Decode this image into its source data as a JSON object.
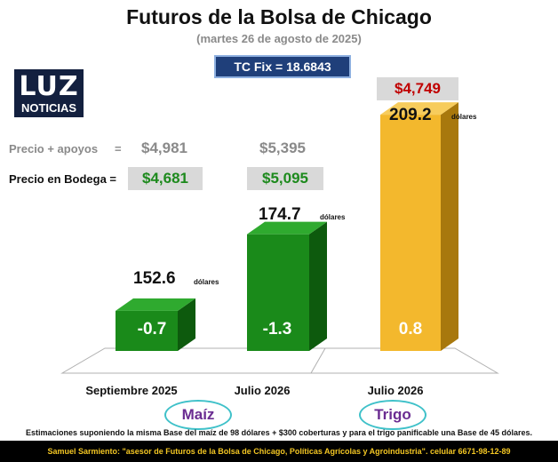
{
  "header": {
    "title": "Futuros de la Bolsa de Chicago",
    "subtitle": "(martes 26 de agosto de 2025)",
    "fx": "TC Fix = 18.6843"
  },
  "logo": {
    "main": "LUZ",
    "sub": "NOTICIAS"
  },
  "prices": {
    "apoyos_label": "Precio + apoyos",
    "apoyos_eq": "=",
    "apoyos_values": [
      "$4,981",
      "$5,395"
    ],
    "bodega_label": "Precio en Bodega =",
    "bodega_values": [
      "$4,681",
      "$5,095"
    ],
    "trigo_price": "$4,749"
  },
  "chart_data": {
    "type": "bar",
    "categories": [
      "Septiembre 2025",
      "Julio 2026",
      "Julio 2026"
    ],
    "values": [
      152.6,
      174.7,
      209.2
    ],
    "value_labels": [
      "152.6",
      "174.7",
      "209.2"
    ],
    "unit_label": "dólares",
    "bar_labels": [
      "-0.7",
      "-1.3",
      "0.8"
    ],
    "groups": [
      "Maíz",
      "Trigo"
    ],
    "colors": {
      "maiz_front": "#1a8a1a",
      "maiz_top": "#2faa2f",
      "maiz_side": "#0d5a0d",
      "trigo_front": "#f3b82d",
      "trigo_top": "#f7cc5c",
      "trigo_side": "#a8780d"
    }
  },
  "note": "Estimaciones suponiendo la misma Base del maíz de 98 dólares + $300 coberturas y para el trigo panificable una Base de 45 dólares.",
  "footer": {
    "name": "Samuel Sarmiento:",
    "text": " \"asesor de Futuros de la Bolsa de Chicago, Políticas Agrícolas y Agroindustria\". celular 6671-98-12-89"
  }
}
